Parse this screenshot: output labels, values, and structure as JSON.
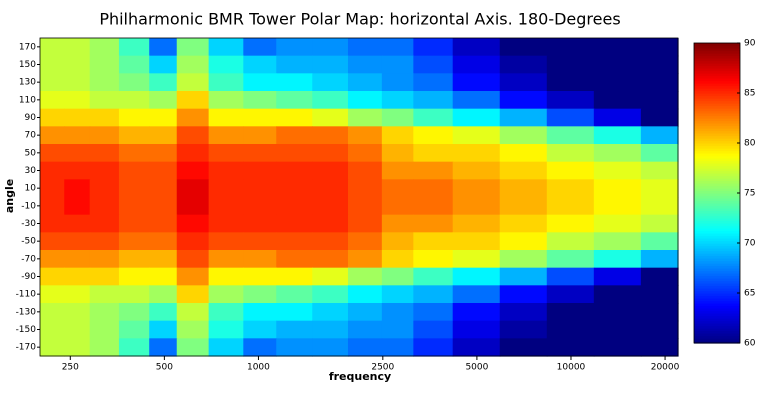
{
  "chart_data": {
    "type": "heatmap",
    "title": "Philharmonic BMR Tower Polar Map: horizontal Axis. 180-Degrees",
    "xlabel": "frequency",
    "ylabel": "angle",
    "xscale": "log",
    "xlim": [
      200,
      22000
    ],
    "xticks": [
      250,
      500,
      1000,
      2500,
      5000,
      10000,
      20000
    ],
    "ylim": [
      -180,
      180
    ],
    "yticks": [
      170,
      150,
      130,
      110,
      90,
      70,
      50,
      30,
      10,
      -10,
      -30,
      -50,
      -70,
      -90,
      -110,
      -130,
      -150,
      -170
    ],
    "zlim": [
      60,
      90
    ],
    "zticks": [
      90,
      85,
      80,
      75,
      70,
      65,
      60
    ],
    "colormap": "jet",
    "x": [
      220,
      260,
      320,
      400,
      500,
      600,
      800,
      1000,
      1300,
      1700,
      2200,
      2800,
      3500,
      5000,
      7000,
      10000,
      14000,
      20000
    ],
    "y": [
      170,
      150,
      130,
      110,
      90,
      70,
      50,
      30,
      10,
      -10,
      -30,
      -50,
      -70,
      -90,
      -110,
      -130,
      -150,
      -170
    ],
    "z": [
      [
        77,
        77,
        76,
        73,
        67,
        75,
        70,
        67,
        68,
        68,
        67,
        67,
        65,
        62,
        60,
        60,
        60,
        60
      ],
      [
        77,
        77,
        76,
        74,
        70,
        76,
        72,
        70,
        69,
        69,
        68,
        68,
        66,
        63,
        61,
        60,
        60,
        60
      ],
      [
        77,
        77,
        76,
        75,
        73,
        77,
        73,
        71,
        71,
        70,
        69,
        68,
        67,
        64,
        62,
        60,
        60,
        60
      ],
      [
        78,
        78,
        77,
        77,
        76,
        80,
        76,
        75,
        74,
        73,
        71,
        70,
        69,
        67,
        64,
        62,
        60,
        60
      ],
      [
        80,
        80,
        80,
        79,
        79,
        82,
        79,
        79,
        79,
        78,
        76,
        75,
        73,
        71,
        69,
        66,
        63,
        60
      ],
      [
        82,
        82,
        82,
        81,
        81,
        84,
        82,
        82,
        83,
        83,
        82,
        80,
        79,
        78,
        76,
        74,
        72,
        69
      ],
      [
        84,
        84,
        84,
        83,
        83,
        85,
        84,
        84,
        84,
        84,
        83,
        81,
        80,
        80,
        79,
        77,
        76,
        74
      ],
      [
        85,
        85,
        85,
        84,
        84,
        86,
        85,
        85,
        85,
        85,
        84,
        82,
        82,
        81,
        80,
        79,
        78,
        77
      ],
      [
        85,
        86,
        85,
        84,
        84,
        87,
        85,
        85,
        85,
        85,
        84,
        83,
        83,
        82,
        81,
        80,
        79,
        78
      ],
      [
        85,
        86,
        85,
        84,
        84,
        87,
        85,
        85,
        85,
        85,
        84,
        83,
        83,
        82,
        81,
        80,
        79,
        78
      ],
      [
        85,
        85,
        85,
        84,
        84,
        86,
        85,
        85,
        85,
        85,
        84,
        82,
        82,
        81,
        80,
        79,
        78,
        77
      ],
      [
        84,
        84,
        84,
        83,
        83,
        85,
        84,
        84,
        84,
        84,
        83,
        81,
        80,
        80,
        79,
        77,
        76,
        74
      ],
      [
        82,
        82,
        82,
        81,
        81,
        84,
        82,
        82,
        83,
        83,
        82,
        80,
        79,
        78,
        76,
        74,
        72,
        69
      ],
      [
        80,
        80,
        80,
        79,
        79,
        82,
        79,
        79,
        79,
        78,
        76,
        75,
        73,
        71,
        69,
        66,
        63,
        60
      ],
      [
        78,
        78,
        77,
        77,
        76,
        80,
        76,
        75,
        74,
        73,
        71,
        70,
        69,
        67,
        64,
        62,
        60,
        60
      ],
      [
        77,
        77,
        76,
        75,
        73,
        77,
        73,
        71,
        71,
        70,
        69,
        68,
        67,
        64,
        62,
        60,
        60,
        60
      ],
      [
        77,
        77,
        76,
        74,
        70,
        76,
        72,
        70,
        69,
        69,
        68,
        68,
        66,
        63,
        61,
        60,
        60,
        60
      ],
      [
        77,
        77,
        76,
        73,
        67,
        75,
        70,
        67,
        68,
        68,
        67,
        67,
        65,
        62,
        60,
        60,
        60,
        60
      ]
    ]
  }
}
